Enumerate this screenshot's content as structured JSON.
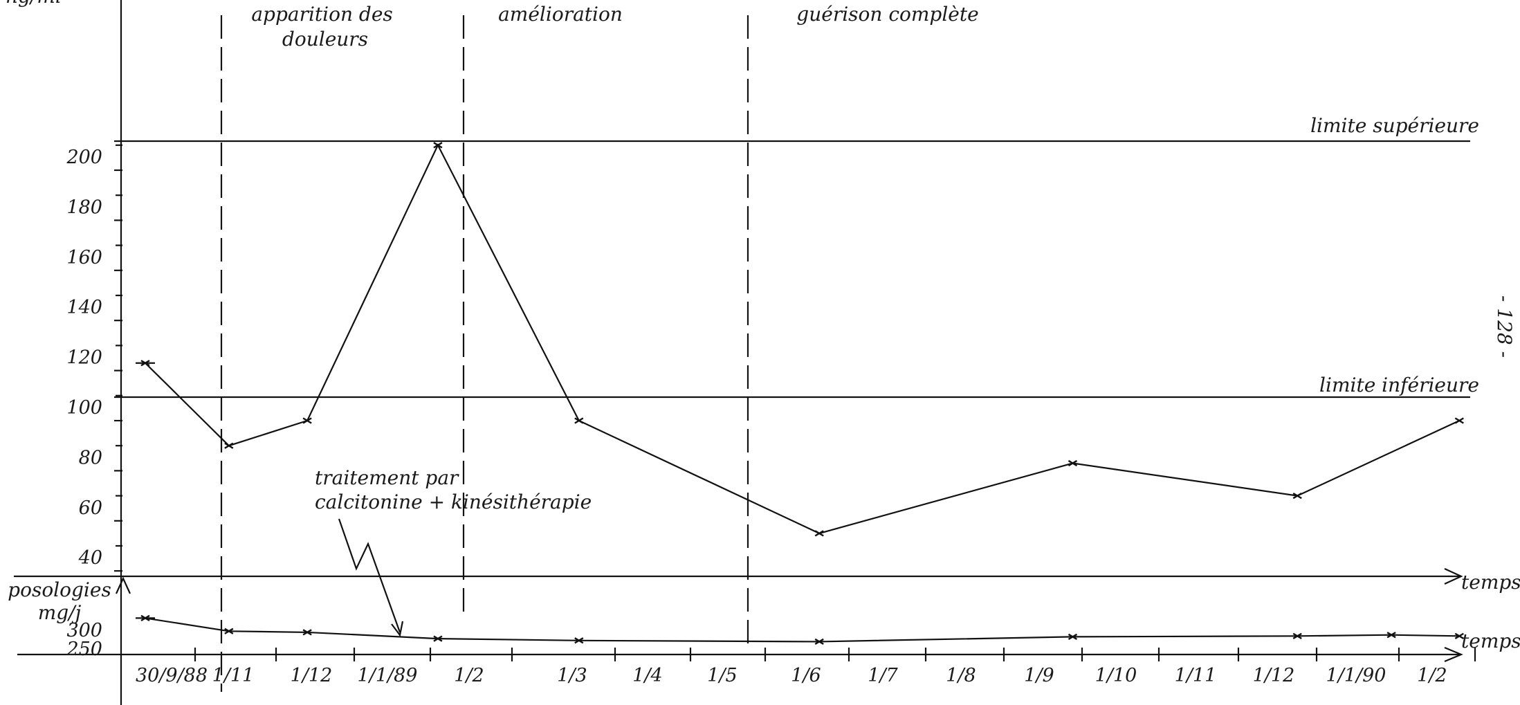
{
  "chart_data": {
    "type": "line",
    "y_unit_label": "ng/ml",
    "y_ticks": [
      "200",
      "180",
      "160",
      "140",
      "120",
      "100",
      "80",
      "60",
      "40"
    ],
    "ylim": [
      40,
      210
    ],
    "reference_lines": [
      {
        "label": "limite supérieure",
        "value": 208
      },
      {
        "label": "limite inférieure",
        "value": 110
      }
    ],
    "phases": [
      "apparition des douleurs",
      "amélioration",
      "guérison complète"
    ],
    "x_ticks": [
      "30/9/88",
      "1/11",
      "1/12",
      "1/1/89",
      "1/2",
      "1/3",
      "1/4",
      "1/5",
      "1/6",
      "1/7",
      "1/8",
      "1/9",
      "1/10",
      "1/11",
      "1/12",
      "1/1/90",
      "1/2"
    ],
    "x_axis_label": "temps",
    "series": [
      {
        "x": [
          "1988-09-30",
          "1988-11-01",
          "1988-12-01",
          "1989-01-20",
          "1989-03-15",
          "1989-06-15",
          "1989-09-20",
          "1989-12-15",
          "1990-02-15"
        ],
        "values": [
          123,
          90,
          100,
          210,
          100,
          55,
          83,
          70,
          100
        ]
      }
    ],
    "dosage_panel": {
      "ylabel": "posologies mg/j",
      "y_ticks": [
        "300",
        "250"
      ],
      "x_axis_label": "temps",
      "x": [
        "1988-09-30",
        "1988-11-01",
        "1988-12-01",
        "1989-01-20",
        "1989-03-15",
        "1989-06-15",
        "1989-09-20",
        "1989-12-15",
        "1990-01-20",
        "1990-02-15"
      ],
      "values": [
        340,
        305,
        302,
        285,
        280,
        277,
        290,
        292,
        295,
        292
      ]
    },
    "annotation": "traitement par calcitonine + kinésithérapie",
    "page_number": "- 128 -"
  }
}
